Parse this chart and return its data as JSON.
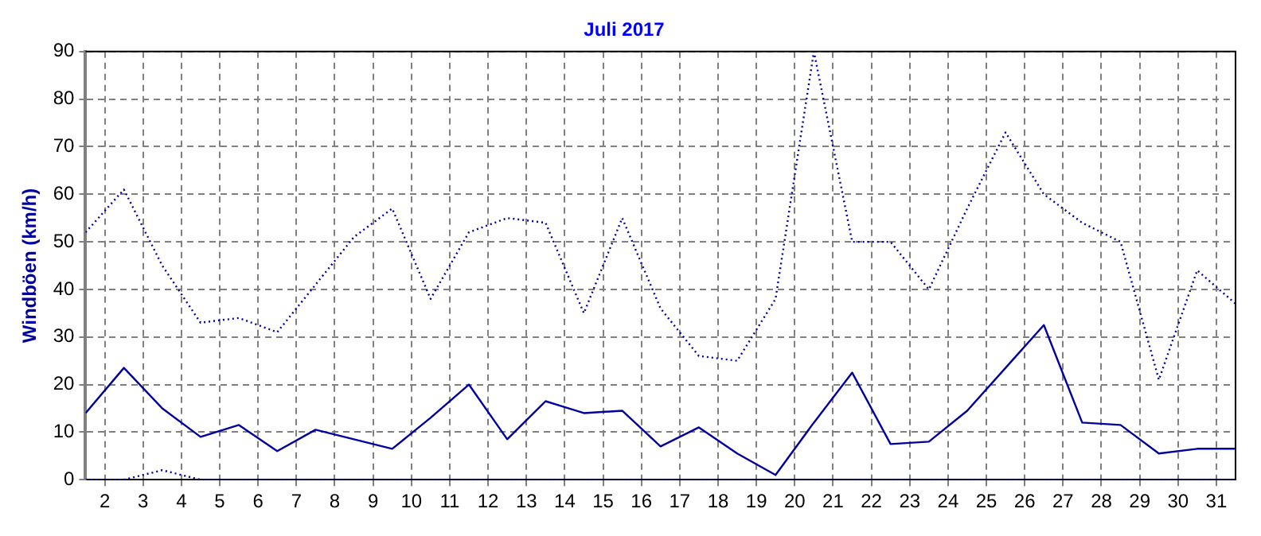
{
  "chart_data": {
    "type": "line",
    "title": "Juli 2017",
    "ylabel": "Windböen (km/h)",
    "x": [
      1.5,
      2.5,
      3.5,
      4.5,
      5.5,
      6.5,
      7.5,
      8.5,
      9.5,
      10.5,
      11.5,
      12.5,
      13.5,
      14.5,
      15.5,
      16.5,
      17.5,
      18.5,
      19.5,
      20.5,
      21.5,
      22.5,
      23.5,
      24.5,
      25.5,
      26.5,
      27.5,
      28.5,
      29.5,
      30.5,
      31.5
    ],
    "xlim": [
      1.5,
      31.5
    ],
    "xticks": [
      2,
      3,
      4,
      5,
      6,
      7,
      8,
      9,
      10,
      11,
      12,
      13,
      14,
      15,
      16,
      17,
      18,
      19,
      20,
      21,
      22,
      23,
      24,
      25,
      26,
      27,
      28,
      29,
      30,
      31
    ],
    "ylim": [
      0,
      90
    ],
    "yticks": [
      0,
      10,
      20,
      30,
      40,
      50,
      60,
      70,
      80,
      90
    ],
    "grid": true,
    "legend": false,
    "marker": "none",
    "series": [
      {
        "color": "#0000a0",
        "line_style": "dotted",
        "values": [
          52,
          61,
          45,
          33,
          34,
          31,
          41,
          51,
          57,
          38,
          52,
          55,
          54,
          35,
          55,
          36,
          26,
          25,
          38,
          90,
          50,
          50,
          40,
          57,
          73,
          60,
          54,
          50,
          21,
          44,
          37
        ]
      },
      {
        "color": "#0000a0",
        "line_style": "solid",
        "values": [
          14,
          23.5,
          15,
          9,
          11.5,
          6,
          10.5,
          8.5,
          6.5,
          13,
          20,
          8.5,
          16.5,
          14,
          14.5,
          7,
          11,
          5.5,
          1,
          12,
          22.5,
          7.5,
          8,
          14.5,
          23.5,
          32.5,
          12,
          11.5,
          5.5,
          6.5,
          6.5
        ]
      },
      {
        "color": "#0000a0",
        "line_style": "dotted",
        "values": [
          0,
          0,
          2,
          0,
          0,
          0,
          0,
          0,
          0,
          0,
          0,
          0,
          0,
          0,
          0,
          0,
          0,
          0,
          0,
          0,
          0,
          0,
          0,
          0,
          0,
          0,
          0,
          0,
          0,
          0,
          0
        ]
      }
    ]
  }
}
